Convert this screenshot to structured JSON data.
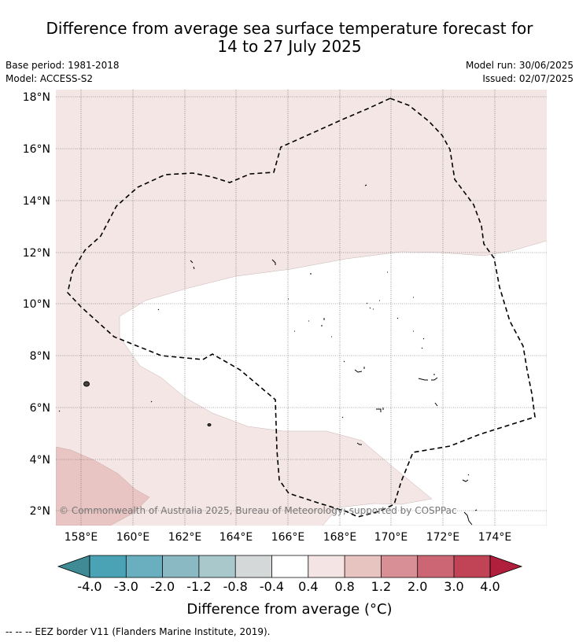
{
  "title": {
    "line1": "Difference from average sea surface temperature forecast for",
    "line2": "14 to 27 July 2025"
  },
  "meta": {
    "base_period": "Base period: 1981-2018",
    "model": "Model: ACCESS-S2",
    "model_run": "Model run: 30/06/2025",
    "issued": "Issued: 02/07/2025"
  },
  "map": {
    "lat_ticks": [
      "18°N",
      "16°N",
      "14°N",
      "12°N",
      "10°N",
      "8°N",
      "6°N",
      "4°N",
      "2°N"
    ],
    "lon_ticks": [
      "158°E",
      "160°E",
      "162°E",
      "164°E",
      "166°E",
      "168°E",
      "170°E",
      "172°E",
      "174°E"
    ],
    "credit": "© Commonwealth of Australia 2025, Bureau of Meteorology; supported by COSPPac",
    "boundary_label": "EEZ border V11"
  },
  "colorbar": {
    "labels": [
      "-4.0",
      "-3.0",
      "-2.0",
      "-1.2",
      "-0.8",
      "-0.4",
      "0.4",
      "0.8",
      "1.2",
      "2.0",
      "3.0",
      "4.0"
    ],
    "colors": [
      "#4aa3b5",
      "#6aafbf",
      "#8ab9c4",
      "#a8c8cc",
      "#d4d8d8",
      "#ffffff",
      "#f4e4e3",
      "#e8c4c1",
      "#d98f96",
      "#cc6674",
      "#c04455"
    ],
    "under_color": "#3f8b95",
    "over_color": "#b01f3c",
    "label": "Difference from average (°C)"
  },
  "footnote": "--  --  -- EEZ border V11 (Flanders Marine Institute, 2019).",
  "colors": {
    "fill_0_4_0_8": "#f4e6e5",
    "fill_0_8_1_2": "#e8c5c2",
    "neutral": "#ffffff"
  }
}
